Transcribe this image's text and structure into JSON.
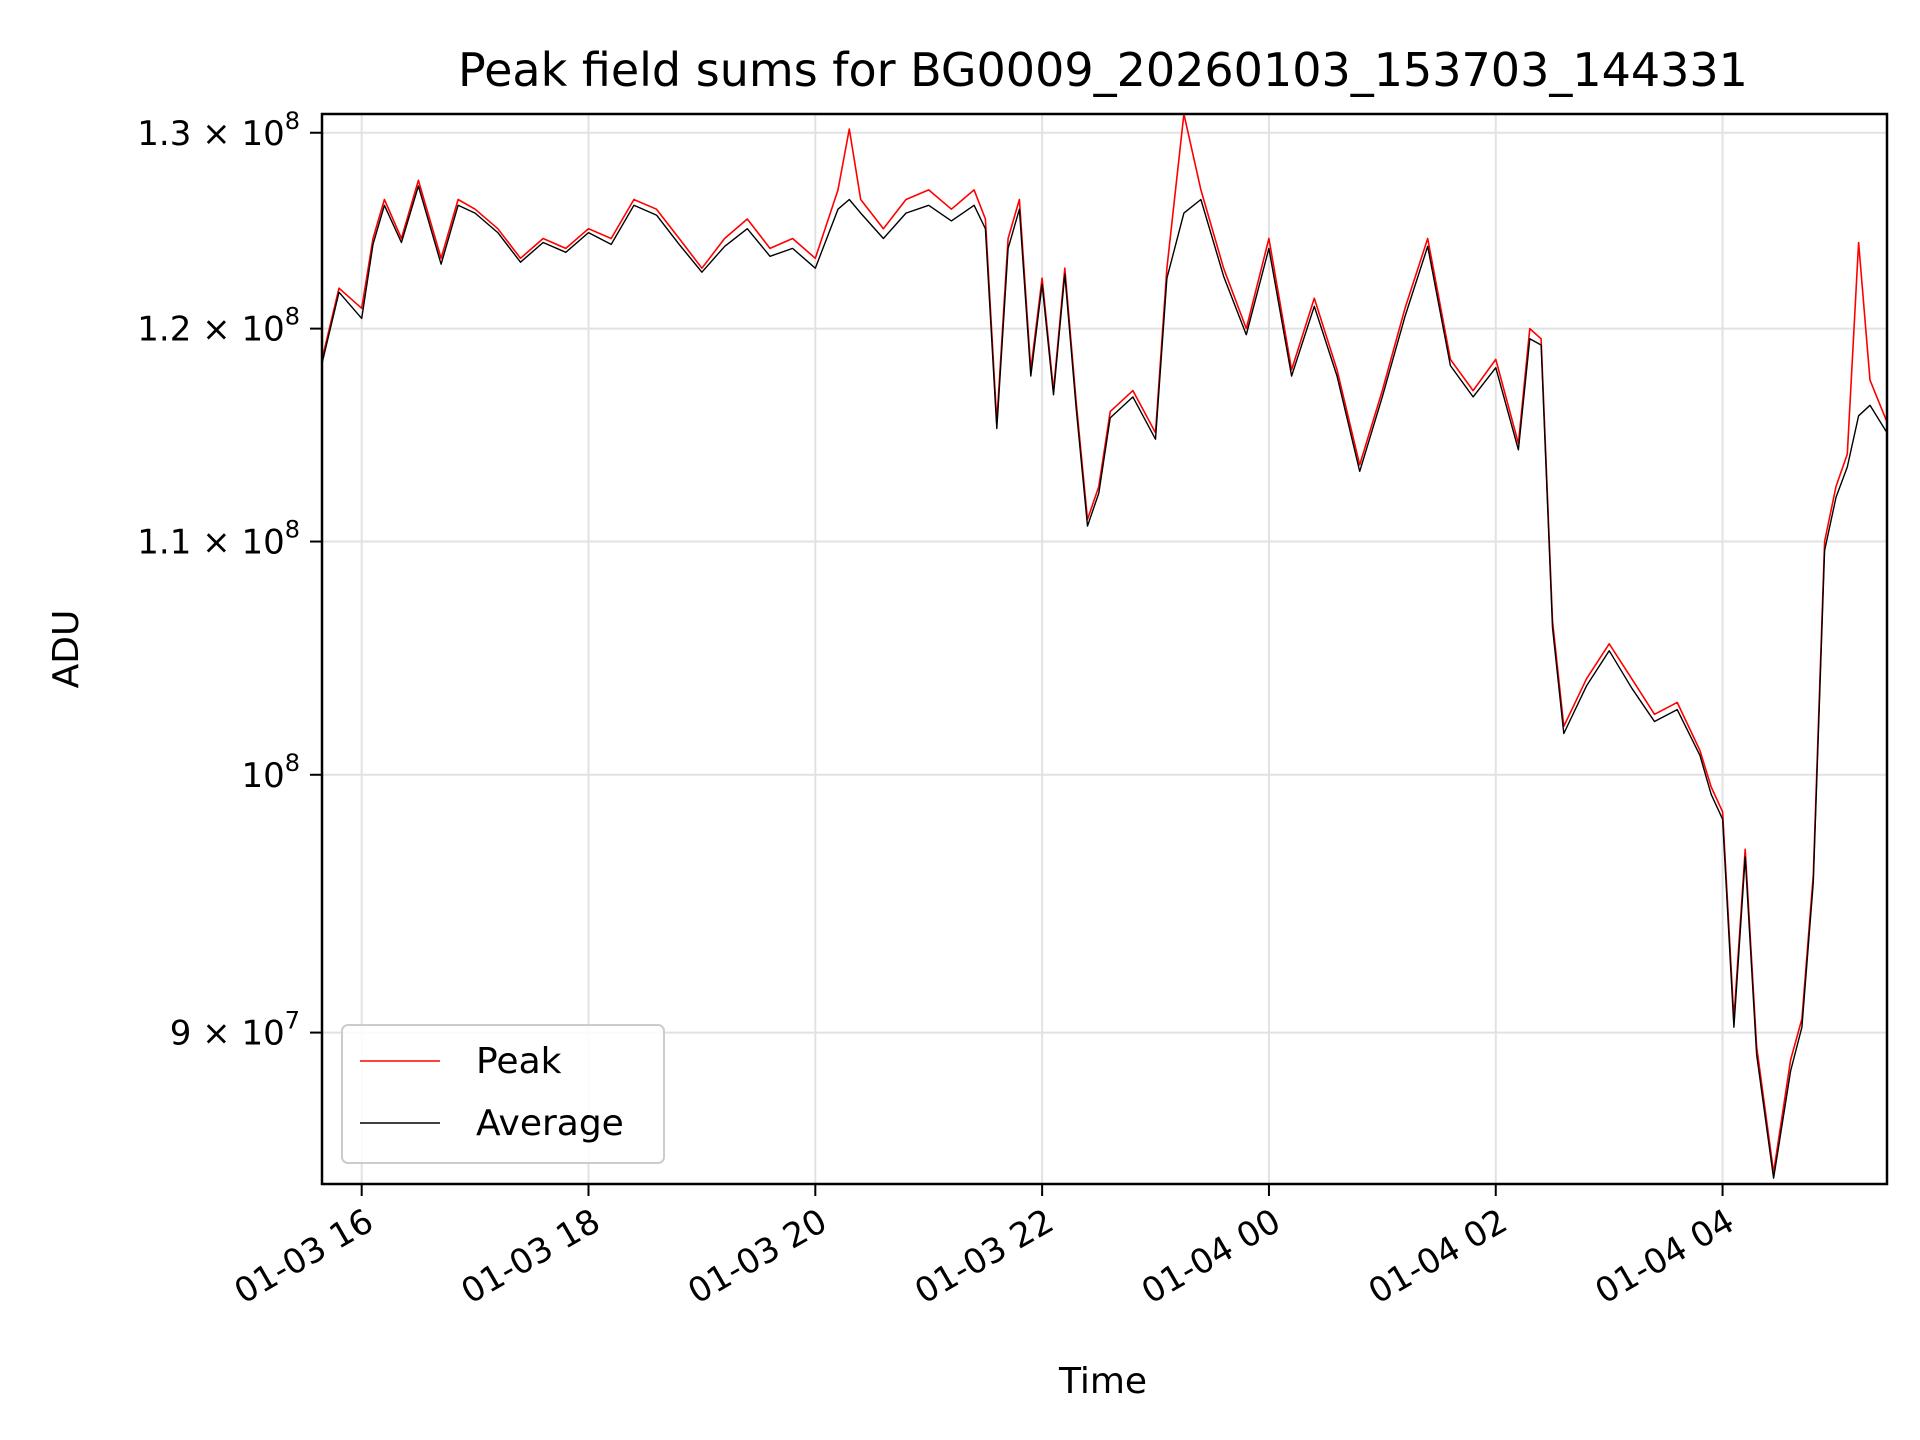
{
  "chart_data": {
    "type": "line",
    "title": "Peak field sums for BG0009_20260103_153703_144331",
    "xlabel": "Time",
    "ylabel": "ADU",
    "yscale": "log",
    "ylim": [
      84600000,
      131000000
    ],
    "xlim_hours": [
      15.65,
      29.45
    ],
    "grid": true,
    "legend_position": "lower-left",
    "x_ticks": [
      {
        "hour": 16,
        "label": "01-03 16"
      },
      {
        "hour": 18,
        "label": "01-03 18"
      },
      {
        "hour": 20,
        "label": "01-03 20"
      },
      {
        "hour": 22,
        "label": "01-03 22"
      },
      {
        "hour": 24,
        "label": "01-04 00"
      },
      {
        "hour": 26,
        "label": "01-04 02"
      },
      {
        "hour": 28,
        "label": "01-04 04"
      }
    ],
    "y_ticks": [
      {
        "value": 90000000,
        "mantissa": "9",
        "exp": "7",
        "sci": true
      },
      {
        "value": 100000000,
        "mantissa": "10",
        "exp": "8",
        "sci": false
      },
      {
        "value": 110000000,
        "mantissa": "1.1",
        "exp": "8",
        "sci": true
      },
      {
        "value": 120000000,
        "mantissa": "1.2",
        "exp": "8",
        "sci": true
      },
      {
        "value": 130000000,
        "mantissa": "1.3",
        "exp": "8",
        "sci": true
      }
    ],
    "times_symbol": "×",
    "base": "10",
    "series": [
      {
        "name": "Peak",
        "color": "#ff0000",
        "x": [
          15.65,
          15.8,
          16.0,
          16.1,
          16.2,
          16.35,
          16.5,
          16.7,
          16.85,
          17.0,
          17.2,
          17.4,
          17.6,
          17.8,
          18.0,
          18.2,
          18.4,
          18.6,
          18.8,
          19.0,
          19.2,
          19.4,
          19.6,
          19.8,
          20.0,
          20.2,
          20.3,
          20.4,
          20.6,
          20.8,
          21.0,
          21.2,
          21.4,
          21.5,
          21.6,
          21.7,
          21.8,
          21.9,
          22.0,
          22.1,
          22.2,
          22.3,
          22.4,
          22.5,
          22.6,
          22.8,
          23.0,
          23.1,
          23.25,
          23.4,
          23.6,
          23.8,
          24.0,
          24.2,
          24.4,
          24.6,
          24.8,
          25.0,
          25.2,
          25.4,
          25.6,
          25.8,
          26.0,
          26.2,
          26.3,
          26.4,
          26.5,
          26.6,
          26.8,
          27.0,
          27.2,
          27.4,
          27.6,
          27.8,
          27.9,
          28.0,
          28.1,
          28.2,
          28.3,
          28.45,
          28.6,
          28.7,
          28.8,
          28.9,
          29.0,
          29.1,
          29.2,
          29.3,
          29.45
        ],
        "y": [
          118500000,
          122000000,
          121000000,
          124500000,
          126500000,
          124500000,
          127500000,
          123500000,
          126500000,
          126000000,
          125000000,
          123500000,
          124500000,
          124000000,
          125000000,
          124500000,
          126500000,
          126000000,
          124500000,
          123000000,
          124500000,
          125500000,
          124000000,
          124500000,
          123500000,
          127000000,
          130200000,
          126500000,
          125000000,
          126500000,
          127000000,
          126000000,
          127000000,
          125500000,
          115500000,
          124500000,
          126500000,
          118000000,
          122500000,
          117000000,
          123000000,
          116500000,
          111000000,
          112500000,
          116000000,
          117000000,
          115000000,
          123000000,
          131000000,
          127000000,
          123000000,
          120000000,
          124500000,
          118000000,
          121500000,
          118000000,
          113500000,
          117000000,
          121000000,
          124500000,
          118500000,
          117000000,
          118500000,
          114500000,
          120000000,
          119500000,
          106500000,
          102000000,
          104000000,
          105500000,
          104000000,
          102500000,
          103000000,
          101000000,
          99500000,
          98500000,
          90500000,
          97000000,
          89500000,
          85000000,
          89000000,
          90500000,
          96000000,
          110000000,
          112500000,
          114000000,
          124300000,
          117500000,
          115500000
        ]
      },
      {
        "name": "Average",
        "color": "#000000",
        "x": [
          15.65,
          15.8,
          16.0,
          16.1,
          16.2,
          16.35,
          16.5,
          16.7,
          16.85,
          17.0,
          17.2,
          17.4,
          17.6,
          17.8,
          18.0,
          18.2,
          18.4,
          18.6,
          18.8,
          19.0,
          19.2,
          19.4,
          19.6,
          19.8,
          20.0,
          20.2,
          20.3,
          20.4,
          20.6,
          20.8,
          21.0,
          21.2,
          21.4,
          21.5,
          21.6,
          21.7,
          21.8,
          21.9,
          22.0,
          22.1,
          22.2,
          22.3,
          22.4,
          22.5,
          22.6,
          22.8,
          23.0,
          23.1,
          23.25,
          23.4,
          23.6,
          23.8,
          24.0,
          24.2,
          24.4,
          24.6,
          24.8,
          25.0,
          25.2,
          25.4,
          25.6,
          25.8,
          26.0,
          26.2,
          26.3,
          26.4,
          26.5,
          26.6,
          26.8,
          27.0,
          27.2,
          27.4,
          27.6,
          27.8,
          27.9,
          28.0,
          28.1,
          28.2,
          28.3,
          28.45,
          28.6,
          28.7,
          28.8,
          28.9,
          29.0,
          29.1,
          29.2,
          29.3,
          29.45
        ],
        "y": [
          118300000,
          121800000,
          120500000,
          124200000,
          126200000,
          124300000,
          127200000,
          123200000,
          126200000,
          125800000,
          124800000,
          123300000,
          124300000,
          123800000,
          124800000,
          124200000,
          126200000,
          125700000,
          124200000,
          122800000,
          124100000,
          125000000,
          123600000,
          124000000,
          123000000,
          126000000,
          126500000,
          125800000,
          124500000,
          125800000,
          126200000,
          125400000,
          126200000,
          125000000,
          115200000,
          124000000,
          126000000,
          117700000,
          122200000,
          116800000,
          122700000,
          116200000,
          110700000,
          112200000,
          115700000,
          116700000,
          114700000,
          122500000,
          125800000,
          126500000,
          122600000,
          119700000,
          124000000,
          117700000,
          121100000,
          117700000,
          113200000,
          116700000,
          120600000,
          124100000,
          118200000,
          116700000,
          118100000,
          114200000,
          119500000,
          119200000,
          106200000,
          101700000,
          103700000,
          105200000,
          103600000,
          102200000,
          102700000,
          100800000,
          99200000,
          98200000,
          90200000,
          96700000,
          89200000,
          84800000,
          88600000,
          90200000,
          95700000,
          109600000,
          112000000,
          113400000,
          115800000,
          116300000,
          115000000
        ]
      }
    ]
  }
}
